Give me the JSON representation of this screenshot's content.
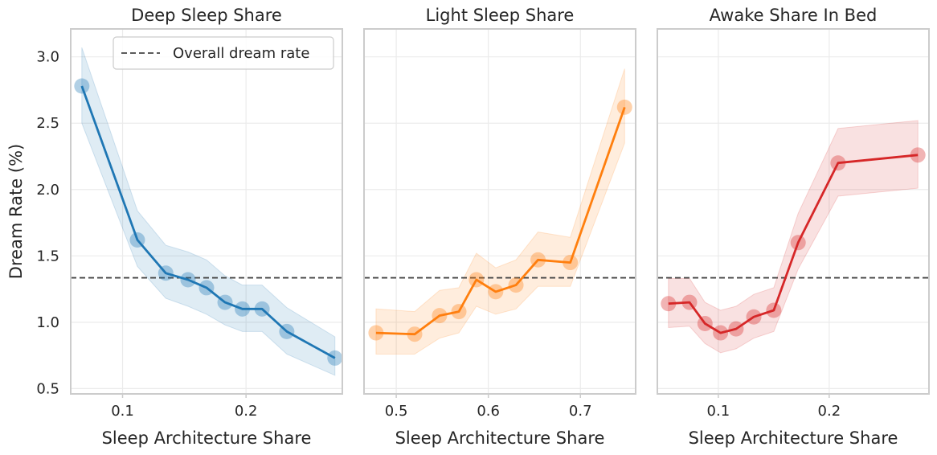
{
  "chart_data": [
    {
      "type": "line",
      "title": "Deep Sleep Share",
      "xlabel": "Sleep Architecture Share",
      "ylabel": "Dream Rate (%)",
      "xlim": [
        0.058,
        0.278
      ],
      "ylim": [
        0.46,
        3.21
      ],
      "xticks": [
        0.1,
        0.2
      ],
      "xtick_labels": [
        "0.1",
        "0.2"
      ],
      "yticks": [
        0.5,
        1.0,
        1.5,
        2.0,
        2.5,
        3.0
      ],
      "ytick_labels": [
        "0.5",
        "1.0",
        "1.5",
        "2.0",
        "2.5",
        "3.0"
      ],
      "color": "#1f77b4",
      "series": [
        {
          "x": [
            0.067,
            0.112,
            0.135,
            0.153,
            0.168,
            0.183,
            0.197,
            0.213,
            0.233,
            0.272
          ],
          "y": [
            2.78,
            1.62,
            1.37,
            1.32,
            1.26,
            1.15,
            1.1,
            1.1,
            0.93,
            0.73
          ],
          "ci_lower": [
            2.5,
            1.42,
            1.18,
            1.12,
            1.06,
            0.98,
            0.93,
            0.93,
            0.76,
            0.6
          ],
          "ci_upper": [
            3.07,
            1.84,
            1.58,
            1.53,
            1.47,
            1.35,
            1.28,
            1.28,
            1.11,
            0.89
          ]
        }
      ],
      "reference_line": {
        "y": 1.335,
        "style": "dashed"
      },
      "legend": {
        "location": "upper-right",
        "entries": [
          "Overall dream rate"
        ]
      },
      "grid": true
    },
    {
      "type": "line",
      "title": "Light Sleep Share",
      "xlabel": "Sleep Architecture Share",
      "ylabel": "",
      "xlim": [
        0.465,
        0.76
      ],
      "ylim": [
        0.46,
        3.21
      ],
      "xticks": [
        0.5,
        0.6,
        0.7
      ],
      "xtick_labels": [
        "0.5",
        "0.6",
        "0.7"
      ],
      "yticks": [
        0.5,
        1.0,
        1.5,
        2.0,
        2.5,
        3.0
      ],
      "ytick_labels": [],
      "color": "#ff7f0e",
      "series": [
        {
          "x": [
            0.478,
            0.52,
            0.547,
            0.568,
            0.587,
            0.608,
            0.63,
            0.654,
            0.689,
            0.748
          ],
          "y": [
            0.92,
            0.91,
            1.05,
            1.08,
            1.32,
            1.23,
            1.28,
            1.47,
            1.45,
            2.62
          ],
          "ci_lower": [
            0.76,
            0.76,
            0.88,
            0.92,
            1.12,
            1.06,
            1.1,
            1.27,
            1.27,
            2.35
          ],
          "ci_upper": [
            1.1,
            1.08,
            1.24,
            1.26,
            1.52,
            1.41,
            1.47,
            1.68,
            1.64,
            2.91
          ]
        }
      ],
      "reference_line": {
        "y": 1.335,
        "style": "dashed"
      },
      "grid": true
    },
    {
      "type": "line",
      "title": "Awake Share In Bed",
      "xlabel": "Sleep Architecture Share",
      "ylabel": "",
      "xlim": [
        0.045,
        0.29
      ],
      "ylim": [
        0.46,
        3.21
      ],
      "xticks": [
        0.1,
        0.2
      ],
      "xtick_labels": [
        "0.1",
        "0.2"
      ],
      "yticks": [
        0.5,
        1.0,
        1.5,
        2.0,
        2.5,
        3.0
      ],
      "ytick_labels": [],
      "color": "#d62728",
      "series": [
        {
          "x": [
            0.055,
            0.074,
            0.088,
            0.102,
            0.116,
            0.132,
            0.15,
            0.172,
            0.208,
            0.28
          ],
          "y": [
            1.14,
            1.15,
            0.99,
            0.92,
            0.95,
            1.04,
            1.09,
            1.6,
            2.2,
            2.26
          ],
          "ci_lower": [
            0.96,
            0.97,
            0.84,
            0.77,
            0.8,
            0.88,
            0.93,
            1.4,
            1.95,
            2.01
          ],
          "ci_upper": [
            1.33,
            1.33,
            1.15,
            1.09,
            1.12,
            1.21,
            1.26,
            1.82,
            2.46,
            2.52
          ]
        }
      ],
      "reference_line": {
        "y": 1.335,
        "style": "dashed"
      },
      "grid": true
    }
  ]
}
